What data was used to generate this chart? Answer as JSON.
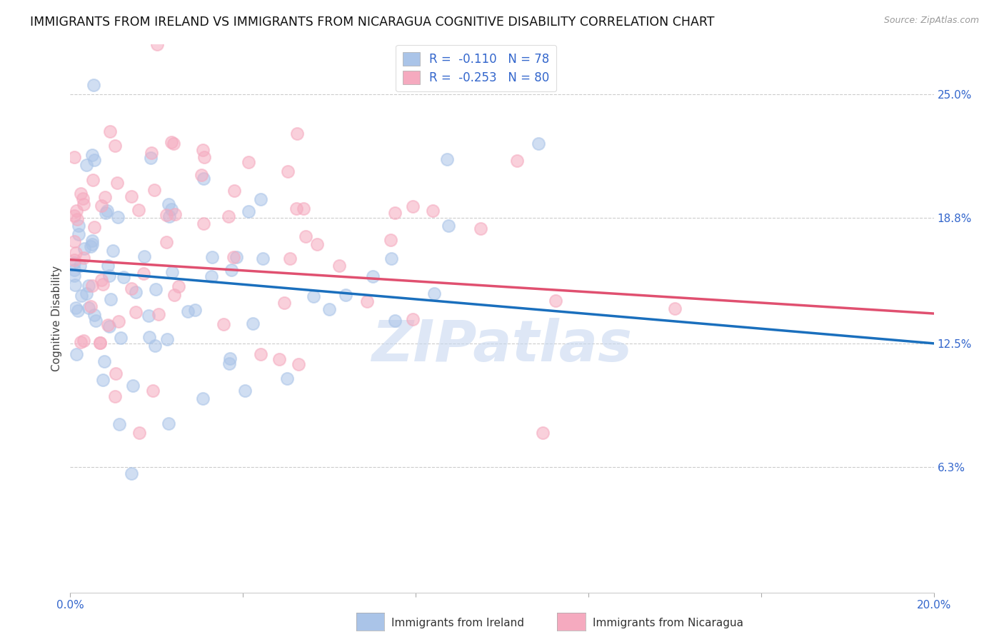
{
  "title": "IMMIGRANTS FROM IRELAND VS IMMIGRANTS FROM NICARAGUA COGNITIVE DISABILITY CORRELATION CHART",
  "source": "Source: ZipAtlas.com",
  "ylabel": "Cognitive Disability",
  "xlim": [
    0.0,
    0.2
  ],
  "ylim": [
    0.0,
    0.275
  ],
  "yticks": [
    0.063,
    0.125,
    0.188,
    0.25
  ],
  "ytick_labels": [
    "6.3%",
    "12.5%",
    "18.8%",
    "25.0%"
  ],
  "xticks": [
    0.0,
    0.04,
    0.08,
    0.12,
    0.16,
    0.2
  ],
  "xtick_labels": [
    "0.0%",
    "",
    "",
    "",
    "",
    "20.0%"
  ],
  "r_ireland": -0.11,
  "n_ireland": 78,
  "r_nicaragua": -0.253,
  "n_nicaragua": 80,
  "color_ireland": "#aac4e8",
  "color_nicaragua": "#f5aabf",
  "line_color_ireland": "#1a6fbd",
  "line_color_nicaragua": "#e05070",
  "title_fontsize": 12.5,
  "axis_label_fontsize": 11,
  "tick_fontsize": 11,
  "legend_fontsize": 12,
  "background_color": "#ffffff",
  "watermark": "ZIPatlas",
  "watermark_color": "#c8d8f0",
  "grid_color": "#cccccc",
  "tick_color": "#3366cc",
  "ireland_line_y0": 0.162,
  "ireland_line_y1": 0.125,
  "nicaragua_line_y0": 0.167,
  "nicaragua_line_y1": 0.14
}
